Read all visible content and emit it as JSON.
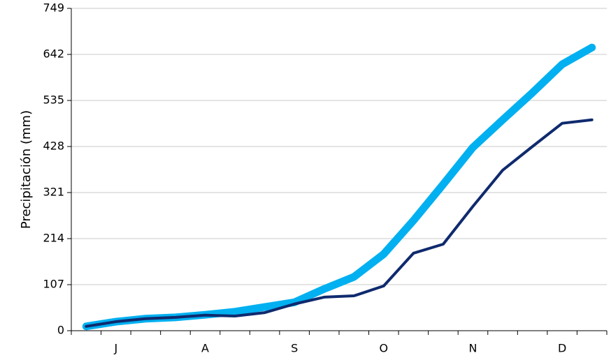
{
  "chart_data": {
    "type": "line",
    "ylabel": "Precipitación (mm)",
    "categories": [
      null,
      "J",
      null,
      null,
      "A",
      null,
      null,
      "S",
      null,
      null,
      "O",
      null,
      null,
      "N",
      null,
      null,
      "D",
      null
    ],
    "series": [
      {
        "color": "#00b0f0",
        "values": [
          10,
          21,
          28,
          31,
          37,
          44,
          55,
          66,
          97,
          125,
          178,
          256,
          340,
          426,
          490,
          553,
          619,
          658
        ]
      },
      {
        "color": "#0f2a6e",
        "values": [
          10,
          21,
          28,
          31,
          36,
          34,
          42,
          62,
          78,
          81,
          104,
          180,
          201,
          289,
          373,
          428,
          482,
          490
        ]
      }
    ],
    "ylim": [
      0,
      749
    ],
    "yticks": [
      0,
      107,
      214,
      321,
      428,
      535,
      642,
      749
    ],
    "grid": true
  }
}
